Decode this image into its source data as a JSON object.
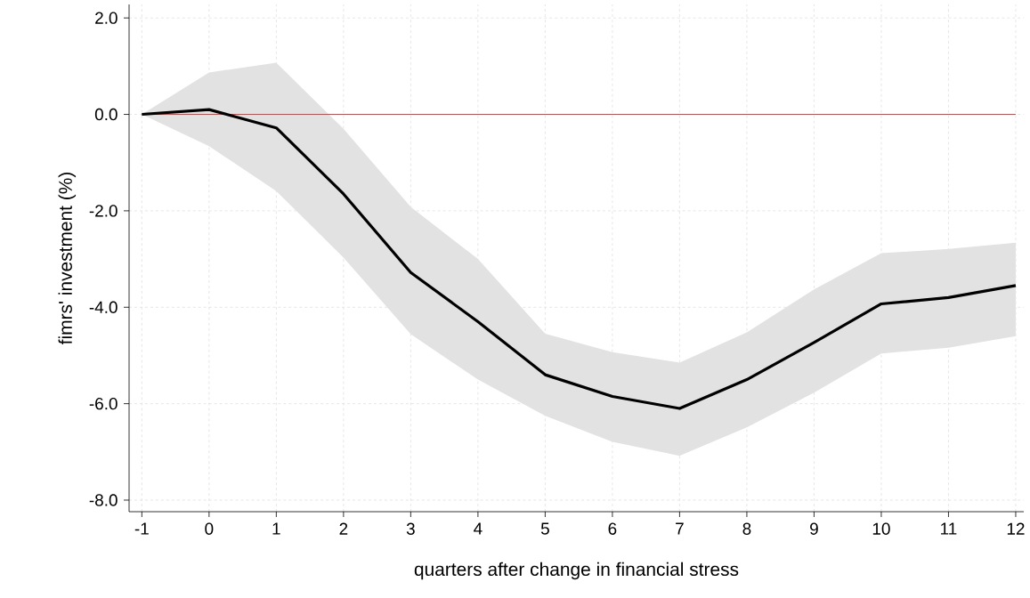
{
  "chart_data": {
    "type": "line",
    "xlabel": "quarters after change in financial stress",
    "ylabel": "fimrs' investment (%)",
    "x": [
      -1,
      0,
      1,
      2,
      3,
      4,
      5,
      6,
      7,
      8,
      9,
      10,
      11,
      12
    ],
    "series": [
      {
        "color": "#000000",
        "values": [
          0.0,
          0.1,
          -0.28,
          -1.65,
          -3.28,
          -4.3,
          -5.4,
          -5.85,
          -6.1,
          -5.5,
          -4.73,
          -3.93,
          -3.8,
          -3.55
        ],
        "upper": [
          0.0,
          0.87,
          1.07,
          -0.3,
          -1.92,
          -3.0,
          -4.55,
          -4.93,
          -5.15,
          -4.52,
          -3.63,
          -2.88,
          -2.79,
          -2.66
        ],
        "lower": [
          0.0,
          -0.66,
          -1.59,
          -2.97,
          -4.56,
          -5.5,
          -6.25,
          -6.79,
          -7.08,
          -6.49,
          -5.77,
          -4.96,
          -4.84,
          -4.6
        ]
      }
    ],
    "xlim": [
      -1.19,
      12.12
    ],
    "ylim": [
      -8.24,
      2.28
    ],
    "xticks": [
      -1,
      0,
      1,
      2,
      3,
      4,
      5,
      6,
      7,
      8,
      9,
      10,
      11,
      12
    ],
    "yticks": [
      {
        "value": -8,
        "label": "-8.0"
      },
      {
        "value": -6,
        "label": "-6.0"
      },
      {
        "value": -4,
        "label": "-4.0"
      },
      {
        "value": -2,
        "label": "-2.0"
      },
      {
        "value": 0,
        "label": "0.0"
      },
      {
        "value": 2,
        "label": "2.0"
      }
    ],
    "grid": true,
    "marker": "none",
    "line_style": "solid",
    "ref_lines": [
      {
        "axis": "y",
        "value": 0,
        "color": "#e03c3c"
      }
    ]
  }
}
